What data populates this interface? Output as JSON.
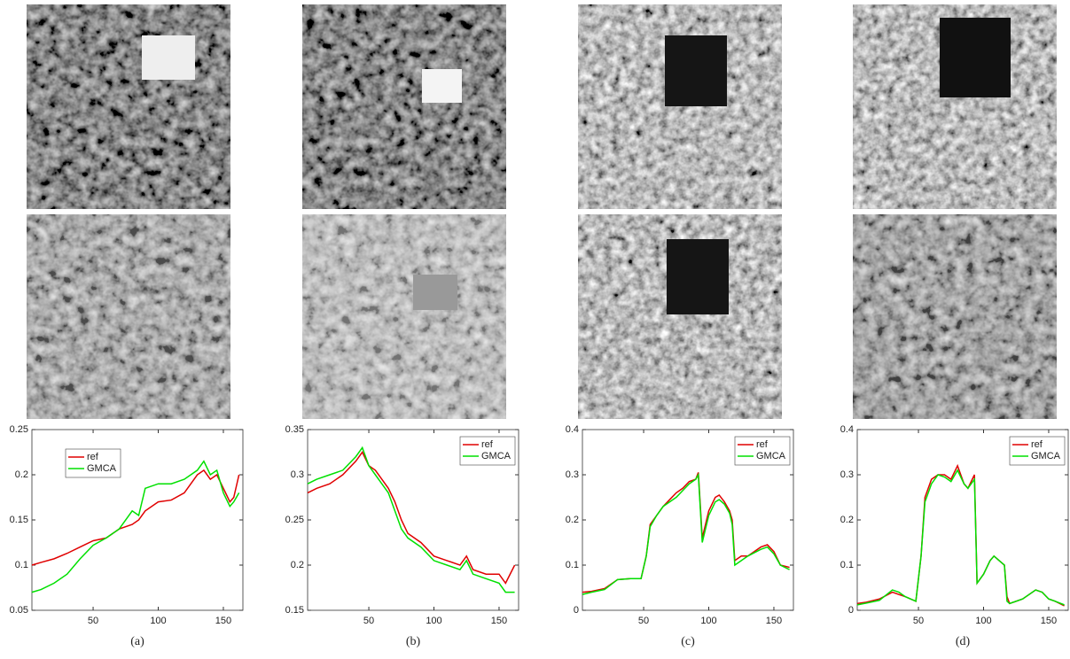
{
  "chart_data": [
    {
      "type": "line",
      "caption": "(a)",
      "xlim": [
        3,
        165
      ],
      "xticks": [
        50,
        100,
        150
      ],
      "ylim": [
        0.05,
        0.25
      ],
      "yticks": [
        0.05,
        0.1,
        0.15,
        0.2,
        0.25
      ],
      "legend": "upper left",
      "x": [
        3,
        10,
        20,
        30,
        40,
        50,
        60,
        70,
        80,
        85,
        90,
        100,
        110,
        120,
        130,
        135,
        140,
        145,
        150,
        155,
        158,
        162
      ],
      "series": [
        {
          "name": "ref",
          "color": "#e00000",
          "values": [
            0.1,
            0.103,
            0.107,
            0.113,
            0.12,
            0.127,
            0.13,
            0.14,
            0.145,
            0.15,
            0.16,
            0.17,
            0.172,
            0.18,
            0.2,
            0.205,
            0.195,
            0.2,
            0.185,
            0.17,
            0.175,
            0.2
          ]
        },
        {
          "name": "GMCA",
          "color": "#00e000",
          "values": [
            0.07,
            0.073,
            0.08,
            0.09,
            0.107,
            0.122,
            0.13,
            0.14,
            0.16,
            0.155,
            0.185,
            0.19,
            0.19,
            0.195,
            0.205,
            0.215,
            0.2,
            0.205,
            0.18,
            0.165,
            0.17,
            0.18
          ]
        }
      ]
    },
    {
      "type": "line",
      "caption": "(b)",
      "xlim": [
        3,
        165
      ],
      "xticks": [
        50,
        100,
        150
      ],
      "ylim": [
        0.15,
        0.35
      ],
      "yticks": [
        0.15,
        0.2,
        0.25,
        0.3,
        0.35
      ],
      "legend": "upper right",
      "x": [
        3,
        10,
        20,
        30,
        40,
        45,
        50,
        55,
        60,
        65,
        70,
        75,
        80,
        90,
        100,
        110,
        120,
        125,
        130,
        140,
        150,
        155,
        162
      ],
      "series": [
        {
          "name": "ref",
          "color": "#e00000",
          "values": [
            0.28,
            0.285,
            0.29,
            0.3,
            0.315,
            0.325,
            0.31,
            0.305,
            0.295,
            0.285,
            0.27,
            0.25,
            0.235,
            0.225,
            0.21,
            0.205,
            0.2,
            0.21,
            0.195,
            0.19,
            0.19,
            0.18,
            0.2
          ]
        },
        {
          "name": "GMCA",
          "color": "#00e000",
          "values": [
            0.29,
            0.295,
            0.3,
            0.305,
            0.32,
            0.33,
            0.31,
            0.3,
            0.29,
            0.28,
            0.26,
            0.24,
            0.23,
            0.22,
            0.205,
            0.2,
            0.195,
            0.205,
            0.19,
            0.185,
            0.18,
            0.17,
            0.17
          ]
        }
      ]
    },
    {
      "type": "line",
      "caption": "(c)",
      "xlim": [
        3,
        165
      ],
      "xticks": [
        50,
        100,
        150
      ],
      "ylim": [
        0,
        0.4
      ],
      "yticks": [
        0,
        0.1,
        0.2,
        0.3,
        0.4
      ],
      "legend": "upper right",
      "x": [
        3,
        10,
        20,
        30,
        40,
        48,
        52,
        55,
        60,
        65,
        70,
        75,
        80,
        85,
        90,
        92,
        95,
        100,
        105,
        108,
        112,
        116,
        118,
        120,
        125,
        130,
        140,
        145,
        150,
        155,
        162
      ],
      "series": [
        {
          "name": "ref",
          "color": "#e00000",
          "values": [
            0.04,
            0.042,
            0.048,
            0.068,
            0.07,
            0.07,
            0.12,
            0.19,
            0.21,
            0.23,
            0.245,
            0.26,
            0.27,
            0.285,
            0.29,
            0.305,
            0.16,
            0.22,
            0.25,
            0.255,
            0.24,
            0.22,
            0.2,
            0.11,
            0.12,
            0.12,
            0.14,
            0.145,
            0.13,
            0.1,
            0.095
          ]
        },
        {
          "name": "GMCA",
          "color": "#00e000",
          "values": [
            0.035,
            0.04,
            0.046,
            0.068,
            0.07,
            0.07,
            0.12,
            0.185,
            0.21,
            0.23,
            0.24,
            0.25,
            0.265,
            0.28,
            0.29,
            0.3,
            0.15,
            0.21,
            0.24,
            0.245,
            0.235,
            0.215,
            0.19,
            0.1,
            0.11,
            0.12,
            0.135,
            0.14,
            0.125,
            0.1,
            0.09
          ]
        }
      ]
    },
    {
      "type": "line",
      "caption": "(d)",
      "xlim": [
        3,
        165
      ],
      "xticks": [
        50,
        100,
        150
      ],
      "ylim": [
        0,
        0.4
      ],
      "yticks": [
        0,
        0.1,
        0.2,
        0.3,
        0.4
      ],
      "legend": "upper right",
      "x": [
        3,
        10,
        20,
        30,
        35,
        40,
        48,
        52,
        55,
        60,
        65,
        70,
        75,
        80,
        85,
        88,
        93,
        95,
        100,
        105,
        108,
        112,
        116,
        118,
        120,
        130,
        140,
        145,
        150,
        155,
        162
      ],
      "series": [
        {
          "name": "ref",
          "color": "#e00000",
          "values": [
            0.015,
            0.018,
            0.025,
            0.04,
            0.035,
            0.03,
            0.02,
            0.12,
            0.25,
            0.29,
            0.3,
            0.3,
            0.29,
            0.32,
            0.28,
            0.27,
            0.3,
            0.06,
            0.08,
            0.11,
            0.12,
            0.11,
            0.1,
            0.03,
            0.015,
            0.025,
            0.045,
            0.04,
            0.025,
            0.02,
            0.01
          ]
        },
        {
          "name": "GMCA",
          "color": "#00e000",
          "values": [
            0.012,
            0.016,
            0.022,
            0.045,
            0.04,
            0.03,
            0.02,
            0.12,
            0.24,
            0.28,
            0.3,
            0.295,
            0.285,
            0.31,
            0.28,
            0.27,
            0.29,
            0.06,
            0.08,
            0.11,
            0.12,
            0.11,
            0.1,
            0.02,
            0.015,
            0.025,
            0.045,
            0.04,
            0.025,
            0.02,
            0.012
          ]
        }
      ]
    }
  ]
}
